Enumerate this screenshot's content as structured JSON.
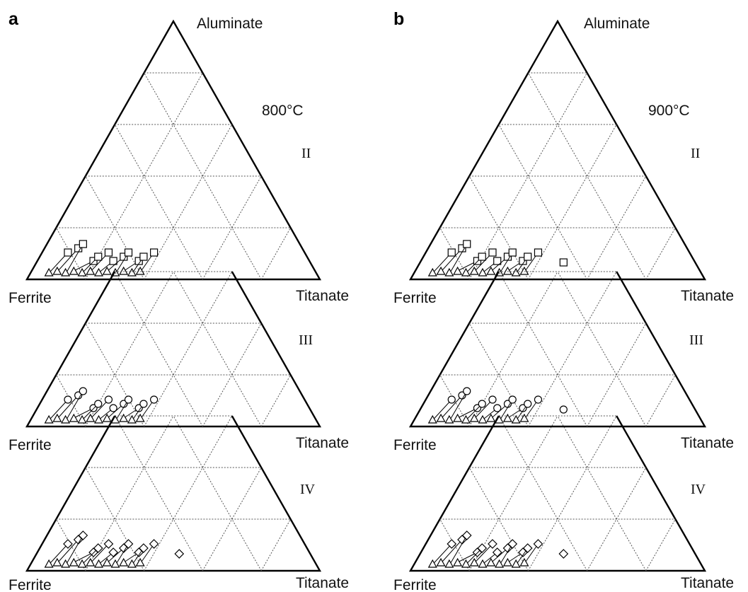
{
  "figure": {
    "panels": [
      {
        "letter": "a",
        "temperature": "800°C",
        "labels": {
          "top": "Aluminate",
          "left": "Ferrite",
          "right": "Titanate"
        },
        "subplots": [
          {
            "roman": "II",
            "marker": "square",
            "arrows": 12,
            "lone": 0
          },
          {
            "roman": "III",
            "marker": "circle",
            "arrows": 12,
            "lone": 0
          },
          {
            "roman": "IV",
            "marker": "diamond",
            "arrows": 12,
            "lone": 1
          }
        ]
      },
      {
        "letter": "b",
        "temperature": "900°C",
        "labels": {
          "top": "Aluminate",
          "left": "Ferrite",
          "right": "Titanate"
        },
        "subplots": [
          {
            "roman": "II",
            "marker": "square",
            "arrows": 12,
            "lone": 1
          },
          {
            "roman": "III",
            "marker": "circle",
            "arrows": 12,
            "lone": 1
          },
          {
            "roman": "IV",
            "marker": "diamond",
            "arrows": 12,
            "lone": 1
          }
        ]
      }
    ],
    "legend_markers": {
      "final_state": "triangle",
      "initial_states": [
        "square",
        "circle",
        "diamond"
      ]
    }
  }
}
